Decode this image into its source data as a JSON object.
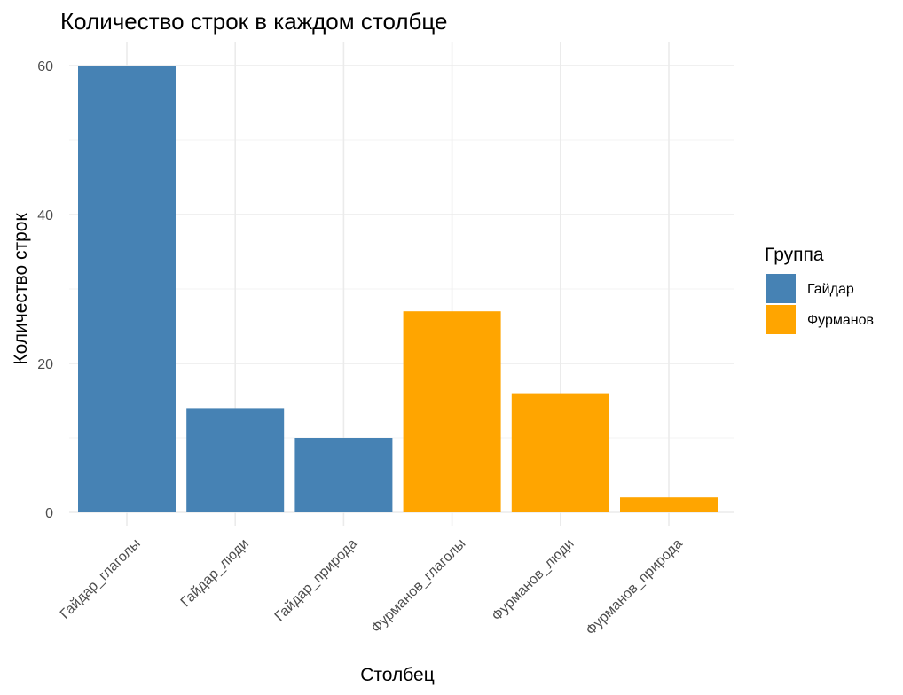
{
  "chart_data": {
    "type": "bar",
    "title": "Количество строк в каждом столбце",
    "xlabel": "Столбец",
    "ylabel": "Количество строк",
    "categories": [
      "Гайдар_глаголы",
      "Гайдар_люди",
      "Гайдар_природа",
      "Фурманов_глаголы",
      "Фурманов_люди",
      "Фурманов_природа"
    ],
    "values": [
      60,
      14,
      10,
      27,
      16,
      2
    ],
    "groups": [
      "Гайдар",
      "Гайдар",
      "Гайдар",
      "Фурманов",
      "Фурманов",
      "Фурманов"
    ],
    "ylim": [
      0,
      60
    ],
    "yticks": [
      "0",
      "20",
      "40",
      "60"
    ],
    "yticks_values": [
      0,
      20,
      40,
      60
    ],
    "grid": true,
    "legend": {
      "title": "Группа",
      "placement": "right",
      "entries": [
        {
          "label": "Гайдар",
          "color": "#4682b4"
        },
        {
          "label": "Фурманов",
          "color": "#ffa500"
        }
      ]
    }
  }
}
